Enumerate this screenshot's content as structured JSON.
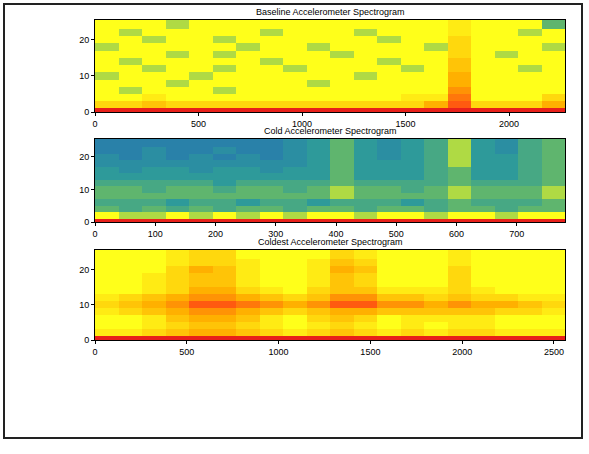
{
  "chart_data": [
    {
      "type": "heatmap",
      "title": "Baseline Accelerometer Spectrogram",
      "x": [
        0,
        113.5,
        227,
        340.5,
        454,
        567.5,
        681,
        794.5,
        908,
        1021.5,
        1135,
        1248.5,
        1362,
        1475.5,
        1589,
        1702.5,
        1816,
        1929.5,
        2043,
        2156.5,
        2270
      ],
      "y": [
        0,
        1,
        3,
        5,
        7,
        9,
        11,
        13,
        15,
        17,
        19,
        21,
        23,
        25.5
      ],
      "z": [
        [
          10,
          10,
          10,
          10,
          10,
          10,
          10,
          10,
          10,
          10,
          10,
          10,
          10,
          10,
          10,
          10,
          10,
          10,
          10,
          10
        ],
        [
          6,
          6,
          6.5,
          6,
          6,
          6,
          6,
          6,
          6,
          6,
          6,
          6,
          6,
          6,
          7,
          8.5,
          6,
          6,
          6,
          7
        ],
        [
          5,
          5,
          5.5,
          5,
          5,
          5,
          5,
          5,
          5,
          5,
          5,
          5,
          5,
          5.5,
          5.5,
          8,
          5,
          5,
          5,
          6
        ],
        [
          5,
          4.5,
          5,
          5,
          5,
          4.5,
          5,
          5,
          5,
          5,
          5,
          5,
          5,
          5,
          5,
          7.5,
          5,
          5,
          5,
          5
        ],
        [
          5,
          5,
          5,
          4.5,
          5,
          5,
          5,
          5,
          5,
          4.5,
          5,
          5,
          5,
          5,
          5,
          7,
          5,
          5,
          5,
          5
        ],
        [
          4.5,
          5,
          5,
          5,
          4.5,
          5,
          5,
          5,
          5,
          5,
          5,
          4.5,
          5,
          5,
          5,
          7,
          5,
          5,
          5,
          5
        ],
        [
          5,
          5,
          4.5,
          5,
          5,
          4.5,
          5,
          5,
          4.5,
          5,
          5,
          5,
          5,
          4.5,
          5,
          6.5,
          5,
          5,
          4.5,
          5
        ],
        [
          5,
          4.5,
          5,
          5,
          5,
          5,
          5,
          4.5,
          5,
          5,
          5,
          5,
          4.5,
          5,
          5,
          6.5,
          5,
          5,
          5,
          5
        ],
        [
          5,
          5,
          5,
          4.5,
          5,
          4.5,
          5,
          5,
          5,
          5,
          4.5,
          5,
          5,
          5,
          5,
          6,
          5,
          4.5,
          5,
          5
        ],
        [
          4.5,
          5,
          5,
          5,
          5,
          5,
          4.5,
          5,
          5,
          4.5,
          5,
          5,
          5,
          5,
          4.5,
          6,
          5,
          5,
          5,
          4.5
        ],
        [
          5,
          5,
          4.5,
          5,
          5,
          4.5,
          5,
          5,
          5,
          5,
          5,
          5,
          4.5,
          5,
          5,
          6,
          5,
          5,
          5,
          5
        ],
        [
          5,
          4.5,
          5,
          5,
          5,
          5,
          5,
          4.5,
          5,
          5,
          5,
          4.5,
          5,
          5,
          5,
          5.5,
          5,
          5,
          4.5,
          5
        ],
        [
          5,
          5,
          5,
          4.5,
          5,
          5,
          5,
          5,
          5,
          5,
          5,
          5,
          5,
          5,
          5,
          5.5,
          5,
          5,
          5,
          4
        ]
      ],
      "zlim": [
        0,
        10
      ],
      "xlim": [
        0,
        2270
      ],
      "xticks": [
        0,
        500,
        1000,
        1500,
        2000
      ],
      "ylim": [
        0,
        25.5
      ],
      "yticks": [
        0,
        10,
        20
      ]
    },
    {
      "type": "heatmap",
      "title": "Cold Accelerometer Spectrogram",
      "x": [
        0,
        39,
        78,
        117,
        156,
        195,
        234,
        273,
        312,
        351,
        390,
        429,
        468,
        507,
        546,
        585,
        624,
        663,
        702,
        741,
        780
      ],
      "y": [
        0,
        1,
        3,
        5,
        7,
        9,
        11,
        13,
        15,
        17,
        19,
        21,
        23,
        25.5
      ],
      "z": [
        [
          10,
          10,
          10,
          10,
          10,
          10,
          10,
          10,
          10,
          10,
          10,
          10,
          10,
          10,
          10,
          10,
          10,
          10,
          10,
          10
        ],
        [
          5,
          4.5,
          4.5,
          5,
          4.5,
          5,
          4.5,
          5,
          4.5,
          5,
          5,
          4.5,
          5,
          5,
          4.5,
          5,
          5,
          4.5,
          5,
          5
        ],
        [
          4,
          3.5,
          4,
          3.5,
          4,
          3.5,
          4,
          4,
          3.5,
          4,
          4,
          3.5,
          4,
          4,
          3.5,
          4,
          4,
          3.5,
          4,
          4
        ],
        [
          3.5,
          3.5,
          3.5,
          3,
          3.5,
          3.5,
          3,
          3.5,
          3.5,
          3,
          3.5,
          3.5,
          3.5,
          3,
          3.5,
          4,
          3.5,
          3.5,
          3.5,
          4
        ],
        [
          4,
          4,
          4,
          4,
          4,
          4,
          4,
          4,
          4,
          4,
          4.5,
          4,
          4,
          4,
          4,
          4.5,
          4,
          4,
          4,
          4.5
        ],
        [
          4,
          4,
          3.5,
          4,
          4,
          3.5,
          4,
          4,
          3.5,
          4,
          4.5,
          4,
          4,
          3.5,
          4,
          4.5,
          4,
          4,
          4,
          4.5
        ],
        [
          3.5,
          3.5,
          3.5,
          3.5,
          3.5,
          3,
          3.5,
          3.5,
          3.5,
          3.5,
          4,
          3.5,
          3.5,
          3.5,
          3.5,
          4,
          3.5,
          3.5,
          3.5,
          4
        ],
        [
          3,
          3,
          3,
          3,
          3,
          3,
          3,
          3,
          3,
          3,
          4,
          3,
          3,
          3,
          3.5,
          4,
          3,
          3,
          3.5,
          4
        ],
        [
          3,
          2.5,
          3,
          3,
          2.5,
          3,
          3,
          2.5,
          3,
          3,
          4,
          3,
          3,
          3,
          3.5,
          4,
          3,
          3,
          3.5,
          4
        ],
        [
          2.5,
          2.5,
          2.5,
          2.5,
          2.5,
          2.5,
          2.5,
          2.5,
          2.5,
          3,
          4,
          3,
          3,
          3,
          3.5,
          4.5,
          3,
          3,
          3.5,
          4
        ],
        [
          2.5,
          2,
          2.5,
          2,
          2.5,
          2,
          2.5,
          2,
          2.5,
          3,
          4,
          3,
          2.5,
          3,
          3.5,
          4.5,
          3,
          3,
          3.5,
          4
        ],
        [
          2,
          2,
          2.5,
          2,
          2,
          2.5,
          2,
          2,
          2.5,
          3,
          4,
          3,
          2.5,
          3,
          3.5,
          4.5,
          3,
          2.5,
          3.5,
          4
        ],
        [
          2,
          2,
          2,
          2,
          2,
          2,
          2,
          2,
          2.5,
          3,
          4,
          3,
          2.5,
          3,
          3.5,
          4.5,
          3,
          2.5,
          3.5,
          4
        ]
      ],
      "zlim": [
        0,
        10
      ],
      "xlim": [
        0,
        780
      ],
      "xticks": [
        0,
        100,
        200,
        300,
        400,
        500,
        600,
        700
      ],
      "ylim": [
        0,
        25.5
      ],
      "yticks": [
        0,
        10,
        20
      ]
    },
    {
      "type": "heatmap",
      "title": "Coldest Accelerometer Spectrogram",
      "x": [
        0,
        128,
        256,
        384,
        512,
        640,
        768,
        896,
        1024,
        1152,
        1280,
        1408,
        1536,
        1664,
        1792,
        1920,
        2048,
        2176,
        2304,
        2432,
        2560
      ],
      "y": [
        0,
        1,
        3,
        5,
        7,
        9,
        11,
        13,
        15,
        17,
        19,
        21,
        23,
        25.5
      ],
      "z": [
        [
          10,
          10,
          10,
          10,
          10,
          10,
          10,
          10,
          10,
          10,
          10,
          10,
          10,
          10,
          10,
          10,
          10,
          10,
          10,
          10
        ],
        [
          5.5,
          5.5,
          6,
          6.5,
          7,
          7,
          6.5,
          6,
          5.5,
          6,
          6.5,
          6,
          5.5,
          6,
          5.5,
          6,
          6,
          5.5,
          5.5,
          5.5
        ],
        [
          5,
          5,
          5.5,
          6,
          6.5,
          6.5,
          6,
          5.5,
          5,
          5.5,
          6,
          5.5,
          5,
          5.5,
          5,
          5.5,
          5.5,
          5,
          5,
          5
        ],
        [
          5,
          5,
          5.5,
          6.5,
          7,
          7,
          6.5,
          5.5,
          5,
          6,
          6.5,
          6,
          5,
          5.5,
          5.5,
          5.5,
          5.5,
          5,
          5,
          5
        ],
        [
          5.5,
          6,
          6.5,
          7,
          7.5,
          7.5,
          7,
          6.5,
          6,
          6.5,
          7,
          7,
          6.5,
          6.5,
          6.5,
          6.5,
          6.5,
          6,
          6,
          5.5
        ],
        [
          6,
          6.5,
          7,
          7.5,
          8.5,
          8.5,
          8,
          7.5,
          7,
          7.5,
          8.5,
          8.5,
          7.5,
          7.5,
          7,
          7.5,
          7,
          7,
          6.5,
          6
        ],
        [
          5.5,
          6,
          6.5,
          7,
          7.5,
          7.5,
          7,
          6.5,
          6,
          6.5,
          7.5,
          7.5,
          6.5,
          6.5,
          6,
          6.5,
          6,
          6,
          5.5,
          5.5
        ],
        [
          5,
          5,
          5.5,
          6,
          7,
          7,
          6,
          5.5,
          5,
          6,
          6.5,
          6.5,
          5.5,
          5.5,
          5.5,
          6,
          5.5,
          5,
          5,
          5
        ],
        [
          5,
          5,
          5.5,
          6,
          6.5,
          6.5,
          5.5,
          5,
          5,
          5.5,
          6.5,
          6,
          5,
          5,
          5,
          6,
          5,
          5,
          5,
          5
        ],
        [
          5,
          5,
          5.5,
          6,
          6.5,
          6.5,
          5.5,
          5,
          5,
          5.5,
          6.5,
          6,
          5,
          5,
          5,
          6,
          5,
          5,
          5,
          5
        ],
        [
          5,
          5,
          5,
          6,
          7,
          6.5,
          5.5,
          5,
          5,
          5.5,
          7,
          6.5,
          5,
          5,
          5,
          6,
          5,
          5,
          5,
          5
        ],
        [
          5,
          5,
          5,
          5.5,
          6,
          6,
          5.5,
          5,
          5,
          5.5,
          6.5,
          6,
          5,
          5,
          5,
          5.5,
          5,
          5,
          5,
          5
        ],
        [
          5,
          5,
          5,
          5.5,
          6,
          6,
          5,
          5,
          5,
          5,
          6,
          5.5,
          5,
          5,
          5,
          5.5,
          5,
          5,
          5,
          5
        ]
      ],
      "zlim": [
        0,
        10
      ],
      "xlim": [
        0,
        2560
      ],
      "xticks": [
        0,
        500,
        1000,
        1500,
        2000,
        2500
      ],
      "ylim": [
        0,
        25.5
      ],
      "yticks": [
        0,
        10,
        20
      ]
    }
  ]
}
